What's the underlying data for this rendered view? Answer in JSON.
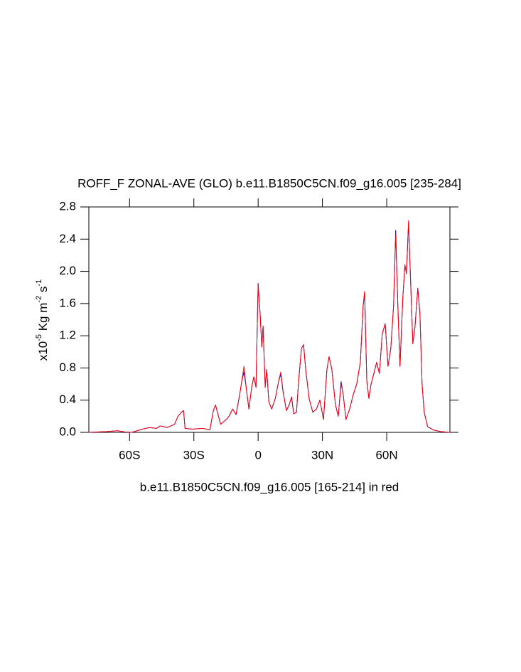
{
  "chart_data": {
    "type": "line",
    "title": "ROFF_F ZONAL-AVE (GLO) b.e11.B1850C5CN.f09_g16.005 [235-284]",
    "ylabel_parts": [
      "x10",
      "-5",
      " Kg m",
      "-2",
      " s",
      "-1"
    ],
    "note": "b.e11.B1850C5CN.f09_g16.005 [165-214] in red",
    "xlim": [
      -79,
      89.5
    ],
    "xticks": [
      {
        "value": -60,
        "label": "60S"
      },
      {
        "value": -30,
        "label": "30S"
      },
      0,
      {
        "value": 30,
        "label": "30N"
      },
      {
        "value": 60,
        "label": "60N"
      }
    ],
    "ylim": [
      0,
      2.8
    ],
    "yticks": [
      {
        "value": 0,
        "label": "0.0"
      },
      0.4,
      0.8,
      1.2,
      1.6,
      {
        "value": 2,
        "label": "2.0"
      },
      2.4,
      2.8
    ],
    "x": [
      -79,
      -70.5,
      -65.6,
      -62.3,
      -59,
      -54,
      -50.7,
      -47.4,
      -45.7,
      -42.4,
      -39,
      -37.4,
      -35.8,
      -34.8,
      -34.1,
      -30.8,
      -25.8,
      -22.5,
      -20.9,
      -19.9,
      -18.5,
      -17.5,
      -14.9,
      -13.6,
      -11.9,
      -10.3,
      -8.6,
      -7.6,
      -6.6,
      -5.6,
      -4.3,
      -3,
      -2,
      -1,
      0,
      1,
      1.7,
      2.3,
      3.3,
      4,
      5,
      6.3,
      8,
      9.6,
      10.6,
      11.6,
      13.2,
      14.6,
      15.6,
      16.6,
      17.9,
      18.9,
      20.2,
      21.2,
      22.2,
      23.8,
      25.5,
      27.2,
      28.8,
      30.5,
      32.1,
      33.1,
      34.4,
      36.1,
      37.4,
      38.7,
      39.7,
      41,
      42.7,
      44.4,
      46,
      47.7,
      49,
      49.7,
      50.7,
      51.7,
      52.7,
      54,
      55.3,
      56.6,
      57.9,
      59.3,
      60.6,
      61.9,
      63.2,
      64.2,
      65.2,
      66.2,
      67.5,
      68.5,
      69.2,
      70.2,
      71.2,
      72.2,
      73.2,
      74.5,
      75.5,
      76.5,
      77.5,
      79.1,
      81.8,
      85.1,
      89.5
    ],
    "series": [
      {
        "name": "b.e11.B1850C5CN.f09_g16.005 [235-284]",
        "color": "#0000ff",
        "values": [
          0,
          0.01,
          0.02,
          0.005,
          0,
          0.04,
          0.06,
          0.05,
          0.08,
          0.06,
          0.1,
          0.2,
          0.25,
          0.27,
          0.05,
          0.04,
          0.05,
          0.03,
          0.27,
          0.34,
          0.2,
          0.1,
          0.16,
          0.2,
          0.29,
          0.22,
          0.47,
          0.64,
          0.75,
          0.56,
          0.29,
          0.56,
          0.69,
          0.56,
          1.85,
          1.44,
          1.06,
          1.32,
          0.56,
          0.78,
          0.38,
          0.29,
          0.42,
          0.64,
          0.72,
          0.51,
          0.27,
          0.35,
          0.44,
          0.23,
          0.25,
          0.64,
          1.04,
          1.09,
          0.78,
          0.42,
          0.25,
          0.29,
          0.4,
          0.16,
          0.78,
          0.94,
          0.78,
          0.34,
          0.2,
          0.63,
          0.47,
          0.16,
          0.29,
          0.47,
          0.6,
          0.87,
          1.57,
          1.75,
          0.64,
          0.42,
          0.6,
          0.73,
          0.87,
          0.73,
          1.22,
          1.35,
          0.82,
          1.04,
          1.57,
          2.51,
          1.57,
          0.82,
          1.66,
          2.08,
          1.97,
          2.6,
          1.84,
          1.1,
          1.31,
          1.79,
          1.48,
          0.6,
          0.25,
          0.07,
          0.03,
          0.01,
          0
        ]
      },
      {
        "name": "b.e11.B1850C5CN.f09_g16.005 [165-214]",
        "color": "#ff0000",
        "values": [
          0,
          0.01,
          0.02,
          0.005,
          0,
          0.04,
          0.06,
          0.05,
          0.08,
          0.06,
          0.1,
          0.2,
          0.25,
          0.27,
          0.05,
          0.04,
          0.05,
          0.03,
          0.27,
          0.34,
          0.2,
          0.1,
          0.16,
          0.2,
          0.29,
          0.22,
          0.47,
          0.64,
          0.82,
          0.56,
          0.29,
          0.56,
          0.69,
          0.56,
          1.85,
          1.44,
          1.06,
          1.32,
          0.56,
          0.78,
          0.38,
          0.29,
          0.42,
          0.64,
          0.75,
          0.51,
          0.27,
          0.35,
          0.44,
          0.23,
          0.25,
          0.64,
          1.04,
          1.09,
          0.78,
          0.42,
          0.25,
          0.29,
          0.4,
          0.16,
          0.78,
          0.94,
          0.78,
          0.34,
          0.2,
          0.6,
          0.47,
          0.16,
          0.29,
          0.47,
          0.6,
          0.87,
          1.57,
          1.75,
          0.64,
          0.42,
          0.6,
          0.73,
          0.87,
          0.73,
          1.22,
          1.35,
          0.82,
          1.04,
          1.57,
          2.46,
          1.57,
          0.82,
          1.66,
          2.08,
          1.97,
          2.63,
          1.84,
          1.1,
          1.31,
          1.79,
          1.48,
          0.6,
          0.25,
          0.07,
          0.03,
          0.01,
          0
        ]
      }
    ]
  }
}
